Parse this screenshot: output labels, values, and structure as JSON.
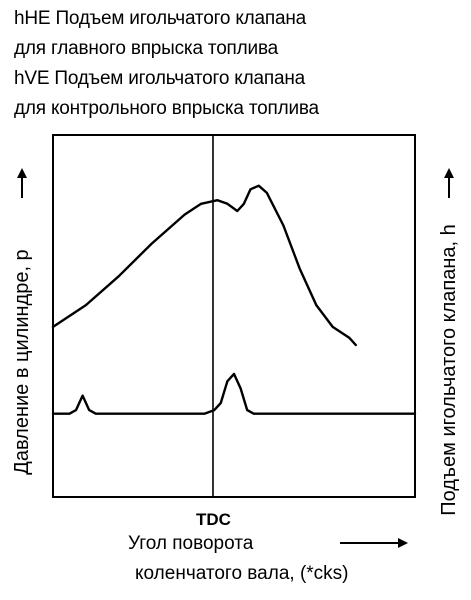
{
  "chart_data": {
    "type": "line",
    "legend": {
      "lines": [
        "hHE Подъем игольчатого клапана",
        "для главного впрыска топлива",
        "hVE Подъем игольчатого клапана",
        "для контрольного впрыска топлива"
      ]
    },
    "ylabel_left": "Давление в цилиндре, p",
    "ylabel_right": "Подъем игольчатого клапана, h",
    "xlabel": [
      "Угол поворота",
      "коленчатого вала, (*cks)"
    ],
    "x_ticks": [
      {
        "x": 0,
        "label": "TDC"
      }
    ],
    "xlim": [
      -100,
      120
    ],
    "ylim": [
      0,
      100
    ],
    "grid": false,
    "series": [
      {
        "x": [
          -100,
          -80,
          -60,
          -40,
          -20,
          -10,
          0,
          6,
          12,
          16,
          20,
          25,
          30,
          40,
          50,
          60,
          70,
          80,
          84
        ],
        "y": [
          47,
          53,
          61,
          70,
          78,
          81,
          82,
          81,
          79,
          81,
          85,
          86,
          84,
          75,
          63,
          53,
          47,
          44,
          42
        ]
      },
      {
        "x": [
          -100,
          -90,
          -86,
          -82,
          -78,
          -74,
          -70,
          -50,
          -30,
          -15,
          -8,
          -2,
          2,
          6,
          10,
          14,
          18,
          22,
          25,
          30,
          50,
          70,
          90,
          110,
          120
        ],
        "y": [
          23,
          23,
          24,
          28,
          24,
          23,
          23,
          23,
          23,
          23,
          23,
          24,
          26,
          32,
          34,
          30,
          24,
          23,
          23,
          23,
          23,
          23,
          23,
          23,
          23
        ]
      }
    ]
  }
}
